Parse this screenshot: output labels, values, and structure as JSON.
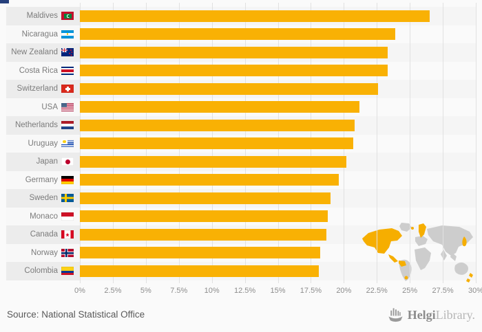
{
  "chart_data": {
    "type": "bar",
    "orientation": "horizontal",
    "categories": [
      "Maldives",
      "Nicaragua",
      "New Zealand",
      "Costa Rica",
      "Switzerland",
      "USA",
      "Netherlands",
      "Uruguay",
      "Japan",
      "Germany",
      "Sweden",
      "Monaco",
      "Canada",
      "Norway",
      "Colombia"
    ],
    "values": [
      26.5,
      23.9,
      23.3,
      23.3,
      22.6,
      21.2,
      20.8,
      20.7,
      20.2,
      19.6,
      19.0,
      18.8,
      18.7,
      18.2,
      18.1
    ],
    "unit": "%",
    "xlim": [
      0,
      30
    ],
    "x_tick_labels": [
      "0%",
      "2.5%",
      "5%",
      "7.5%",
      "10%",
      "12.5%",
      "15%",
      "17.5%",
      "20%",
      "22.5%",
      "25%",
      "27.5%",
      "30%"
    ],
    "grid": true,
    "legend": false,
    "bar_color": "#F9B104",
    "flags": [
      "flag-maldives",
      "flag-nicaragua",
      "flag-new-zealand",
      "flag-costa-rica",
      "flag-switzerland",
      "flag-usa",
      "flag-netherlands",
      "flag-uruguay",
      "flag-japan",
      "flag-germany",
      "flag-sweden",
      "flag-monaco",
      "flag-canada",
      "flag-norway",
      "flag-colombia"
    ]
  },
  "map": {
    "description": "world-map-with-highlighted-countries",
    "base_color": "#CDCDCD",
    "highlight_color": "#F6AE00"
  },
  "footer": {
    "source": "Source: National Statistical Office",
    "logo": {
      "icon": "helgi-ship-icon",
      "brand_bold": "Helgi",
      "brand_light": "Library."
    }
  }
}
